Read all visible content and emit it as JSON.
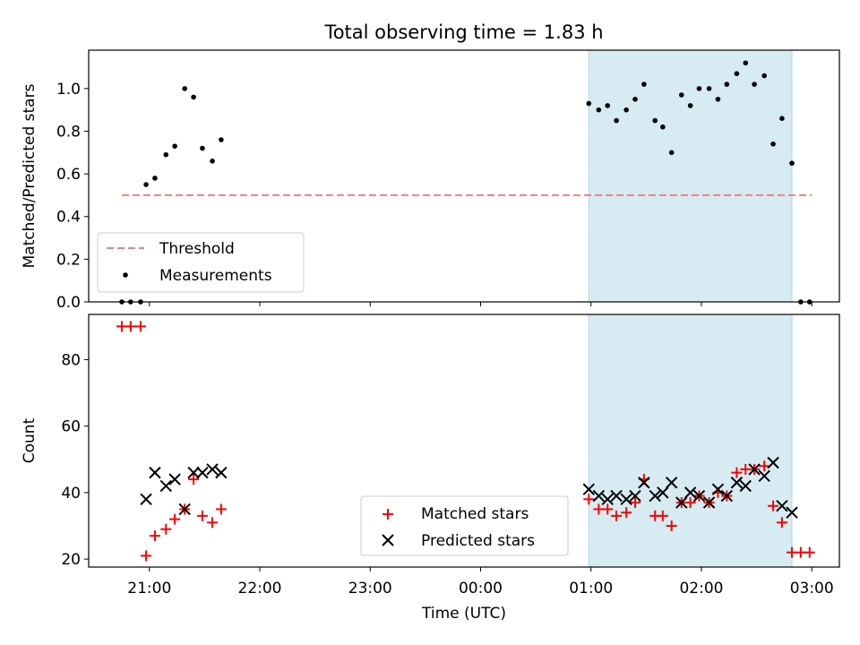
{
  "chart_data": {
    "title": "Total observing time = 1.83 h",
    "xlabel": "Time (UTC)",
    "x_tick_labels": [
      "21:00",
      "22:00",
      "23:00",
      "00:00",
      "01:00",
      "02:00",
      "03:00"
    ],
    "x_tick_hours": [
      21,
      22,
      23,
      24,
      25,
      26,
      27
    ],
    "x_range_hours": [
      20.45,
      27.25
    ],
    "shaded_span_hours": [
      24.98,
      26.82
    ],
    "shaded_color": "#add8e6",
    "panels": [
      {
        "type": "scatter",
        "ylabel": "Matched/Predicted stars",
        "ylim": [
          0,
          1.18
        ],
        "y_ticks": [
          0.0,
          0.2,
          0.4,
          0.6,
          0.8,
          1.0
        ],
        "y_tick_labels": [
          "0.0",
          "0.2",
          "0.4",
          "0.6",
          "0.8",
          "1.0"
        ],
        "legend_position": "lower-left",
        "threshold": {
          "name": "Threshold",
          "value": 0.5,
          "x_range_hours": [
            20.75,
            27.0
          ],
          "color": "#f08080",
          "style": "dashed"
        },
        "series": [
          {
            "name": "Measurements",
            "color": "#000000",
            "marker": "dot",
            "x_hours": [
              20.75,
              20.83,
              20.92,
              20.97,
              21.05,
              21.15,
              21.23,
              21.32,
              21.4,
              21.48,
              21.57,
              21.65,
              24.98,
              25.07,
              25.15,
              25.23,
              25.32,
              25.4,
              25.48,
              25.58,
              25.65,
              25.73,
              25.82,
              25.9,
              25.98,
              26.07,
              26.15,
              26.23,
              26.32,
              26.4,
              26.48,
              26.57,
              26.65,
              26.73,
              26.82,
              26.9,
              26.98
            ],
            "y": [
              0.0,
              0.0,
              0.0,
              0.55,
              0.58,
              0.69,
              0.73,
              1.0,
              0.96,
              0.72,
              0.66,
              0.76,
              0.93,
              0.9,
              0.92,
              0.85,
              0.9,
              0.95,
              1.02,
              0.85,
              0.82,
              0.7,
              0.97,
              0.92,
              1.0,
              1.0,
              0.95,
              1.02,
              1.07,
              1.12,
              1.02,
              1.06,
              0.74,
              0.86,
              0.65,
              0.0,
              0.0
            ]
          }
        ]
      },
      {
        "type": "scatter",
        "ylabel": "Count",
        "ylim": [
          17.6,
          93.6
        ],
        "y_ticks": [
          20,
          40,
          60,
          80
        ],
        "y_tick_labels": [
          "20",
          "40",
          "60",
          "80"
        ],
        "legend_position": "lower-center",
        "series": [
          {
            "name": "Matched stars",
            "color": "#ff0000",
            "marker": "plus",
            "x_hours": [
              20.75,
              20.83,
              20.92,
              20.97,
              21.05,
              21.15,
              21.23,
              21.32,
              21.4,
              21.48,
              21.57,
              21.65,
              24.98,
              25.07,
              25.15,
              25.23,
              25.32,
              25.4,
              25.48,
              25.58,
              25.65,
              25.73,
              25.82,
              25.9,
              25.98,
              26.07,
              26.15,
              26.23,
              26.32,
              26.4,
              26.48,
              26.57,
              26.65,
              26.73,
              26.82,
              26.9,
              26.98
            ],
            "y": [
              90,
              90,
              90,
              21,
              27,
              29,
              32,
              35,
              44,
              33,
              31,
              35,
              38,
              35,
              35,
              33,
              34,
              37,
              44,
              33,
              33,
              30,
              37,
              37,
              39,
              37,
              40,
              39,
              46,
              47,
              47,
              48,
              36,
              31,
              22,
              22,
              22
            ]
          },
          {
            "name": "Predicted stars",
            "color": "#000000",
            "marker": "x",
            "x_hours": [
              20.97,
              21.05,
              21.15,
              21.23,
              21.32,
              21.4,
              21.48,
              21.57,
              21.65,
              24.98,
              25.07,
              25.15,
              25.23,
              25.32,
              25.4,
              25.48,
              25.58,
              25.65,
              25.73,
              25.82,
              25.9,
              25.98,
              26.07,
              26.15,
              26.23,
              26.32,
              26.4,
              26.48,
              26.57,
              26.65,
              26.73,
              26.82
            ],
            "y": [
              38,
              46,
              42,
              44,
              35,
              46,
              46,
              47,
              46,
              41,
              39,
              38,
              39,
              38,
              39,
              43,
              39,
              40,
              43,
              37,
              40,
              39,
              37,
              41,
              39,
              43,
              42,
              47,
              45,
              49,
              36,
              34
            ]
          }
        ]
      }
    ]
  }
}
